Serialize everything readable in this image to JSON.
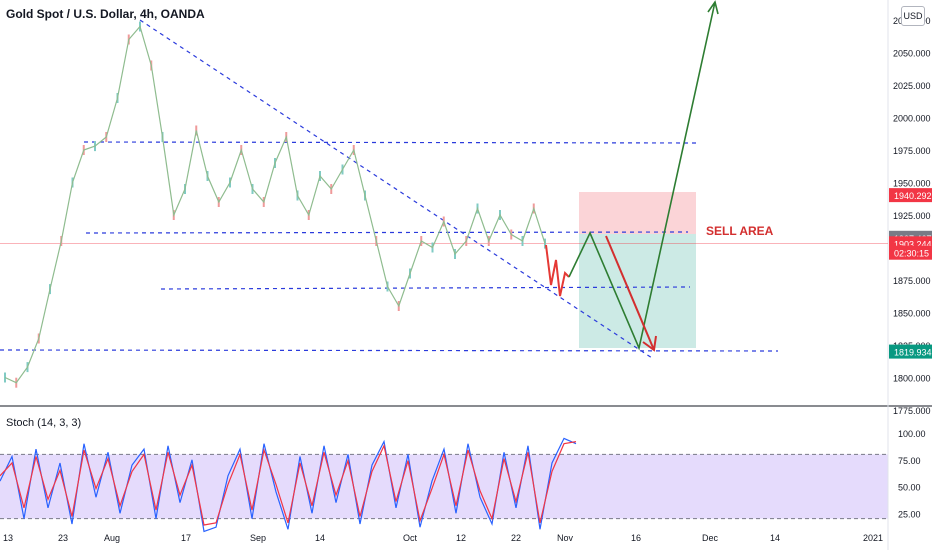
{
  "chart_data": [
    {
      "type": "line",
      "title": "Gold Spot / U.S. Dollar, 4h, OANDA",
      "ylim": [
        1775,
        2075
      ],
      "yticks": [
        "1775.000",
        "1800.000",
        "1825.000",
        "1850.000",
        "1875.000",
        "1900.000",
        "1925.000",
        "1950.000",
        "1975.000",
        "2000.000",
        "2025.000",
        "2050.000",
        "2075.000"
      ],
      "x_tick_labels": [
        "13",
        "23",
        "Aug",
        "17",
        "Sep",
        "14",
        "Oct",
        "12",
        "22",
        "Nov",
        "16",
        "Dec",
        "14",
        "2021"
      ],
      "price_tags": [
        {
          "label": "1940.292",
          "value": 1940.292,
          "color": "#f23645"
        },
        {
          "label": "1907.467",
          "value": 1907.467,
          "color": "#787b86"
        },
        {
          "label": "1903.244",
          "value": 1903.244,
          "color": "#f23645"
        },
        {
          "label": "02:30:15",
          "value": 1896.0,
          "color": "#f23645"
        },
        {
          "label": "1819.934",
          "value": 1819.934,
          "color": "#089981"
        }
      ],
      "annotation": "SELL AREA",
      "currency_button": "USD",
      "series": [
        {
          "values": [
            1800,
            1796,
            1808,
            1830,
            1868,
            1905,
            1950,
            1975,
            1978,
            1985,
            2015,
            2060,
            2070,
            2040,
            1985,
            1925,
            1945,
            1990,
            1955,
            1935,
            1950,
            1975,
            1945,
            1935,
            1965,
            1985,
            1940,
            1925,
            1955,
            1945,
            1960,
            1975,
            1940,
            1905,
            1870,
            1855,
            1880,
            1905,
            1900,
            1920,
            1895,
            1905,
            1930,
            1905,
            1925,
            1910,
            1905,
            1930,
            1903
          ]
        }
      ]
    },
    {
      "type": "line",
      "title": "Stoch (14, 3, 3)",
      "ylim": [
        0,
        100
      ],
      "yticks": [
        "25.00",
        "50.00",
        "75.00",
        "100.00"
      ],
      "bands": [
        20,
        80
      ],
      "series": [
        {
          "color": "#2962ff",
          "values": [
            55,
            78,
            20,
            85,
            30,
            72,
            15,
            90,
            40,
            82,
            25,
            70,
            85,
            20,
            88,
            35,
            75,
            8,
            12,
            60,
            85,
            20,
            90,
            45,
            10,
            78,
            25,
            88,
            35,
            80,
            15,
            70,
            92,
            30,
            80,
            12,
            55,
            85,
            25,
            90,
            40,
            15,
            82,
            30,
            88,
            10,
            72,
            95,
            90
          ]
        },
        {
          "color": "#f23645",
          "values": [
            60,
            72,
            30,
            78,
            38,
            65,
            22,
            84,
            48,
            76,
            32,
            64,
            80,
            28,
            82,
            42,
            70,
            14,
            16,
            52,
            80,
            28,
            84,
            52,
            16,
            72,
            32,
            82,
            42,
            74,
            22,
            64,
            88,
            36,
            74,
            18,
            48,
            80,
            32,
            84,
            46,
            20,
            76,
            36,
            82,
            16,
            64,
            90,
            92
          ]
        }
      ]
    }
  ]
}
